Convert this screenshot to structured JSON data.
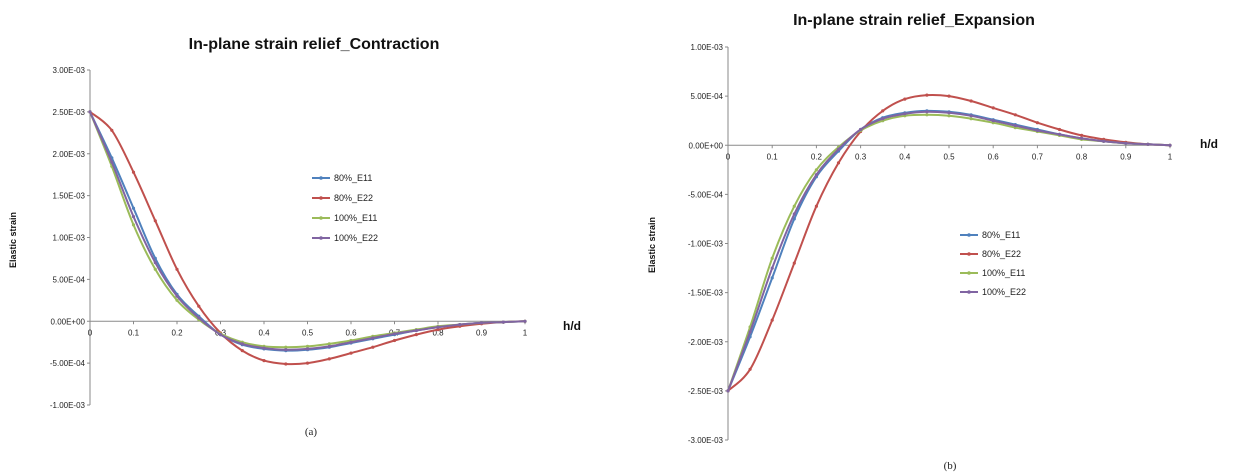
{
  "chart_data": [
    {
      "type": "line",
      "title": "In-plane strain relief_Contraction",
      "xlabel": "h/d",
      "ylabel": "Elastic strain",
      "caption": "(a)",
      "xlim": [
        0,
        1
      ],
      "ylim": [
        -0.001,
        0.003
      ],
      "x_ticks": [
        "0",
        "0.1",
        "0.2",
        "0.3",
        "0.4",
        "0.5",
        "0.6",
        "0.7",
        "0.8",
        "0.9",
        "1"
      ],
      "y_ticks": [
        "3.00E-03",
        "2.50E-03",
        "2.00E-03",
        "1.50E-03",
        "1.00E-03",
        "5.00E-04",
        "0.00E+00",
        "-5.00E-04",
        "-1.00E-03"
      ],
      "grid": false,
      "legend_position": "center-right",
      "x": [
        0,
        0.05,
        0.1,
        0.15,
        0.2,
        0.25,
        0.3,
        0.35,
        0.4,
        0.45,
        0.5,
        0.55,
        0.6,
        0.65,
        0.7,
        0.75,
        0.8,
        0.85,
        0.9,
        0.95,
        1
      ],
      "series": [
        {
          "name": "80%_E11",
          "color": "#4f81bd",
          "values": [
            0.0025,
            0.00195,
            0.00135,
            0.00075,
            0.00032,
            6e-05,
            -0.00016,
            -0.00028,
            -0.00033,
            -0.00035,
            -0.00034,
            -0.00031,
            -0.00026,
            -0.00021,
            -0.00016,
            -0.00011,
            -7e-05,
            -4e-05,
            -2e-05,
            -1e-05,
            0
          ]
        },
        {
          "name": "80%_E22",
          "color": "#c0504d",
          "values": [
            0.0025,
            0.00228,
            0.00178,
            0.0012,
            0.00062,
            0.00018,
            -0.00014,
            -0.00035,
            -0.00047,
            -0.00051,
            -0.0005,
            -0.00045,
            -0.00038,
            -0.00031,
            -0.00023,
            -0.00016,
            -0.0001,
            -6e-05,
            -3e-05,
            -1e-05,
            0
          ]
        },
        {
          "name": "100%_E11",
          "color": "#9bbb59",
          "values": [
            0.0025,
            0.00185,
            0.00115,
            0.00062,
            0.00025,
            2e-05,
            -0.00015,
            -0.00025,
            -0.0003,
            -0.00031,
            -0.0003,
            -0.00027,
            -0.00023,
            -0.00018,
            -0.00014,
            -0.0001,
            -6e-05,
            -4e-05,
            -2e-05,
            -1e-05,
            0
          ]
        },
        {
          "name": "100%_E22",
          "color": "#8064a2",
          "values": [
            0.0025,
            0.0019,
            0.00125,
            0.0007,
            0.0003,
            4e-05,
            -0.00016,
            -0.00027,
            -0.00032,
            -0.00034,
            -0.00033,
            -0.0003,
            -0.00025,
            -0.0002,
            -0.00015,
            -0.00011,
            -7e-05,
            -4e-05,
            -2e-05,
            -1e-05,
            0
          ]
        }
      ]
    },
    {
      "type": "line",
      "title": "In-plane strain relief_Expansion",
      "xlabel": "h/d",
      "ylabel": "Elastic strain",
      "caption": "(b)",
      "xlim": [
        0,
        1
      ],
      "ylim": [
        -0.003,
        0.001
      ],
      "x_ticks": [
        "0",
        "0.1",
        "0.2",
        "0.3",
        "0.4",
        "0.5",
        "0.6",
        "0.7",
        "0.8",
        "0.9",
        "1"
      ],
      "y_ticks": [
        "1.00E-03",
        "5.00E-04",
        "0.00E+00",
        "-5.00E-04",
        "-1.00E-03",
        "-1.50E-03",
        "-2.00E-03",
        "-2.50E-03",
        "-3.00E-03"
      ],
      "grid": false,
      "legend_position": "center",
      "x": [
        0,
        0.05,
        0.1,
        0.15,
        0.2,
        0.25,
        0.3,
        0.35,
        0.4,
        0.45,
        0.5,
        0.55,
        0.6,
        0.65,
        0.7,
        0.75,
        0.8,
        0.85,
        0.9,
        0.95,
        1
      ],
      "series": [
        {
          "name": "80%_E11",
          "color": "#4f81bd",
          "values": [
            -0.0025,
            -0.00195,
            -0.00135,
            -0.00075,
            -0.00032,
            -6e-05,
            0.00016,
            0.00028,
            0.00033,
            0.00035,
            0.00034,
            0.00031,
            0.00026,
            0.00021,
            0.00016,
            0.00011,
            7e-05,
            4e-05,
            2e-05,
            1e-05,
            0
          ]
        },
        {
          "name": "80%_E22",
          "color": "#c0504d",
          "values": [
            -0.0025,
            -0.00228,
            -0.00178,
            -0.0012,
            -0.00062,
            -0.00018,
            0.00014,
            0.00035,
            0.00047,
            0.00051,
            0.0005,
            0.00045,
            0.00038,
            0.00031,
            0.00023,
            0.00016,
            0.0001,
            6e-05,
            3e-05,
            1e-05,
            0
          ]
        },
        {
          "name": "100%_E11",
          "color": "#9bbb59",
          "values": [
            -0.0025,
            -0.00185,
            -0.00115,
            -0.00062,
            -0.00025,
            -2e-05,
            0.00015,
            0.00025,
            0.0003,
            0.00031,
            0.0003,
            0.00027,
            0.00023,
            0.00018,
            0.00014,
            0.0001,
            6e-05,
            4e-05,
            2e-05,
            1e-05,
            0
          ]
        },
        {
          "name": "100%_E22",
          "color": "#8064a2",
          "values": [
            -0.0025,
            -0.0019,
            -0.00125,
            -0.0007,
            -0.0003,
            -4e-05,
            0.00016,
            0.00027,
            0.00032,
            0.00034,
            0.00033,
            0.0003,
            0.00025,
            0.0002,
            0.00015,
            0.00011,
            7e-05,
            4e-05,
            2e-05,
            1e-05,
            0
          ]
        }
      ]
    }
  ]
}
